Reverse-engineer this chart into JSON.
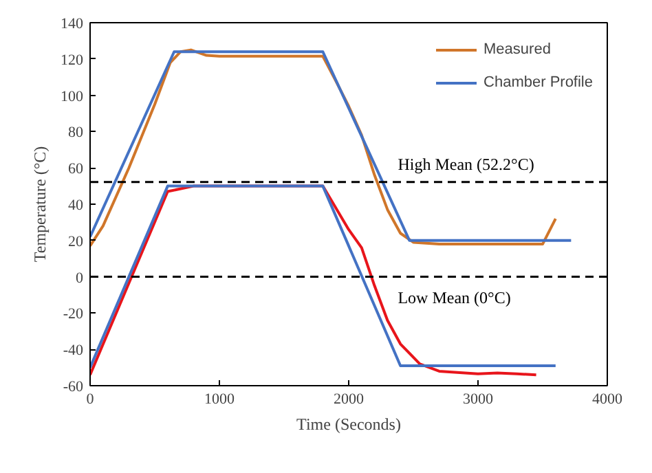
{
  "chart_data": {
    "type": "line",
    "xlabel": "Time (Seconds)",
    "ylabel": "Temperature (°C)",
    "xlim": [
      0,
      4000
    ],
    "ylim": [
      -60,
      140
    ],
    "xticks": [
      0,
      1000,
      2000,
      3000,
      4000
    ],
    "yticks": [
      -60,
      -40,
      -20,
      0,
      20,
      40,
      60,
      80,
      100,
      120,
      140
    ],
    "grid": false,
    "legend": "top right",
    "marker": "none",
    "line_style": "solid",
    "series": [
      {
        "name": "Measured",
        "color": "#d0762a",
        "x": [
          0,
          100,
          300,
          500,
          620,
          700,
          780,
          900,
          1000,
          1800,
          1900,
          2000,
          2100,
          2200,
          2300,
          2400,
          2500,
          2700,
          3500,
          3600
        ],
        "values": [
          17,
          28,
          60,
          95,
          118,
          124,
          125,
          122,
          121.5,
          121.5,
          108,
          94,
          78,
          56,
          37,
          24,
          19,
          18,
          18,
          32
        ]
      },
      {
        "name": "Chamber Profile",
        "color": "#4472c4",
        "x": [
          0,
          650,
          1800,
          2470,
          3720
        ],
        "values": [
          22,
          124,
          124,
          20,
          20
        ]
      },
      {
        "color": "#e8151b",
        "x": [
          0,
          600,
          800,
          1800,
          2000,
          2100,
          2200,
          2300,
          2400,
          2550,
          2700,
          3000,
          3150,
          3300,
          3450
        ],
        "values": [
          -54,
          47,
          50,
          50,
          26,
          16,
          -5,
          -24,
          -37,
          -48,
          -52,
          -53.5,
          -53,
          -53.5,
          -54
        ]
      },
      {
        "color": "#4472c4",
        "x": [
          0,
          600,
          1800,
          2400,
          3600
        ],
        "values": [
          -50,
          50,
          50,
          -49,
          -49
        ]
      }
    ],
    "ref_lines": [
      {
        "axis": "y",
        "value": 52.2,
        "label": "High Mean (52.2°C)",
        "color": "#000000",
        "line_style": "dashed"
      },
      {
        "axis": "y",
        "value": 0,
        "label": "Low Mean (0°C)",
        "color": "#000000",
        "line_style": "dashed"
      }
    ]
  }
}
